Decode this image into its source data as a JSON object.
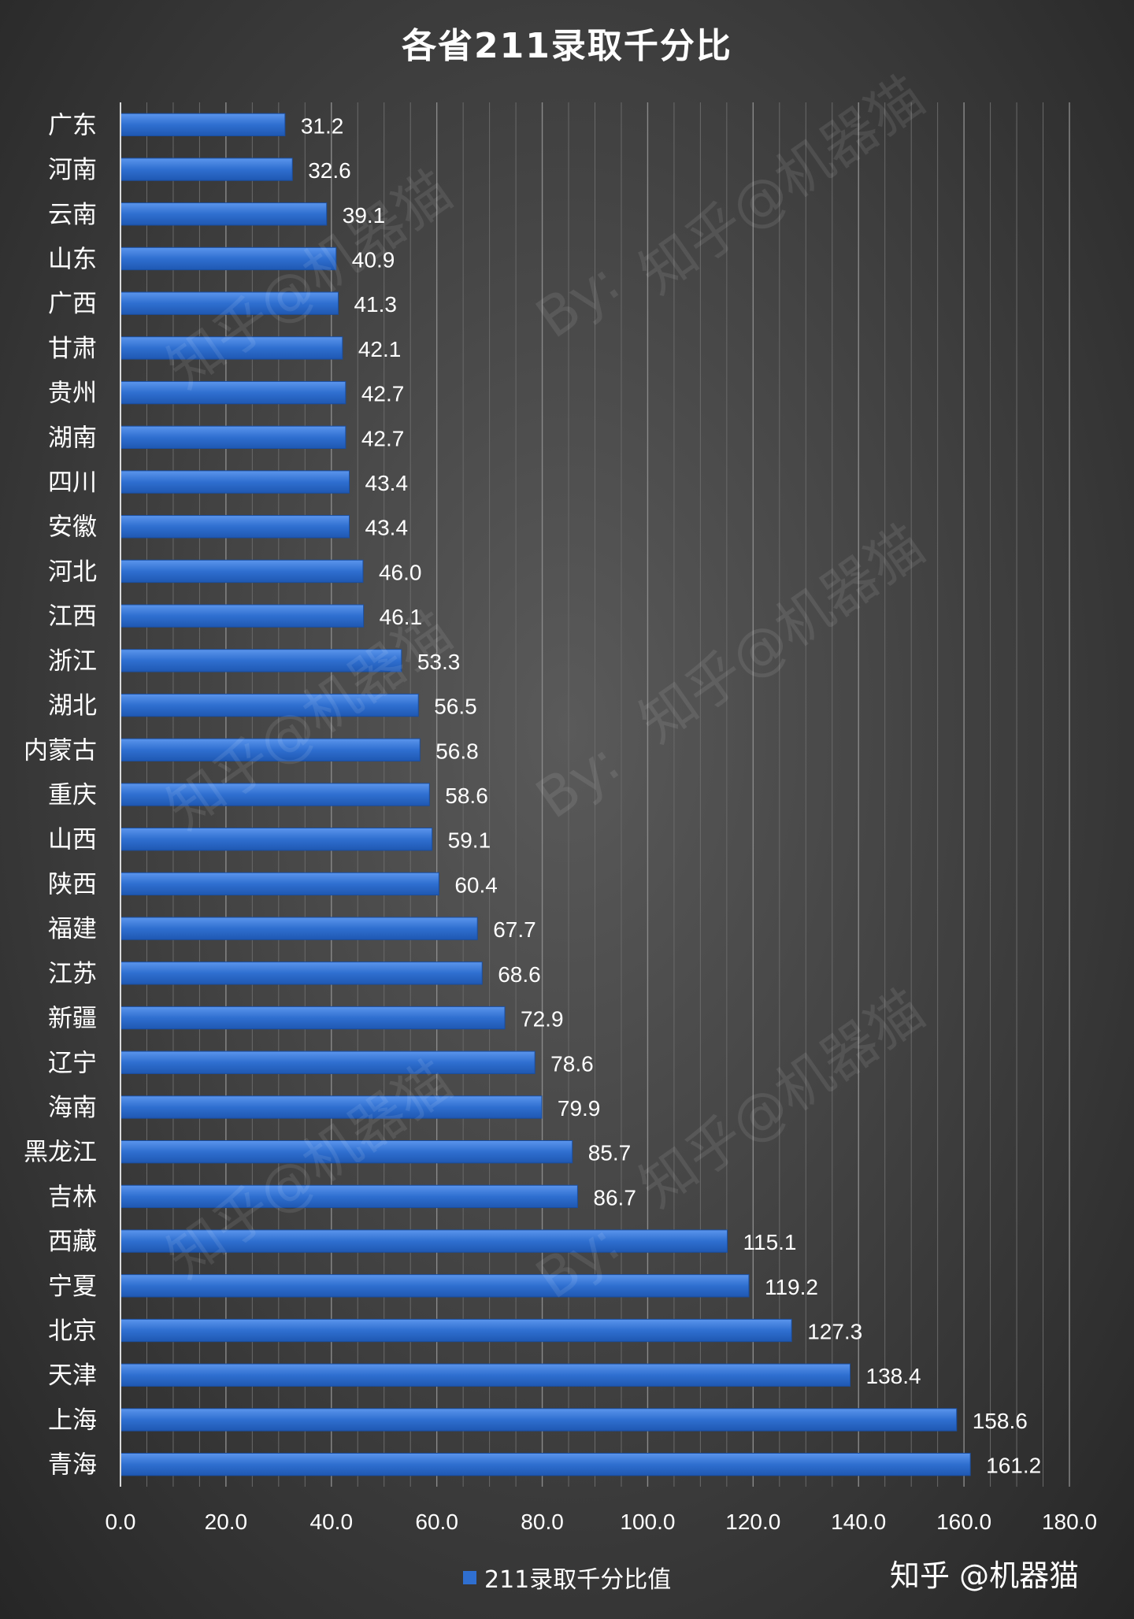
{
  "chart_data": {
    "type": "bar",
    "orientation": "horizontal",
    "title": "各省211录取千分比",
    "categories": [
      "广东",
      "河南",
      "云南",
      "山东",
      "广西",
      "甘肃",
      "贵州",
      "湖南",
      "四川",
      "安徽",
      "河北",
      "江西",
      "浙江",
      "湖北",
      "内蒙古",
      "重庆",
      "山西",
      "陕西",
      "福建",
      "江苏",
      "新疆",
      "辽宁",
      "海南",
      "黑龙江",
      "吉林",
      "西藏",
      "宁夏",
      "北京",
      "天津",
      "上海",
      "青海"
    ],
    "series": [
      {
        "name": "211录取千分比值",
        "values": [
          31.2,
          32.6,
          39.1,
          40.9,
          41.3,
          42.1,
          42.7,
          42.7,
          43.4,
          43.4,
          46.0,
          46.1,
          53.3,
          56.5,
          56.8,
          58.6,
          59.1,
          60.4,
          67.7,
          68.6,
          72.9,
          78.6,
          79.9,
          85.7,
          86.7,
          115.1,
          119.2,
          127.3,
          138.4,
          158.6,
          161.2
        ]
      }
    ],
    "value_labels": [
      "31.2",
      "32.6",
      "39.1",
      "40.9",
      "41.3",
      "42.1",
      "42.7",
      "42.7",
      "43.4",
      "43.4",
      "46.0",
      "46.1",
      "53.3",
      "56.5",
      "56.8",
      "58.6",
      "59.1",
      "60.4",
      "67.7",
      "68.6",
      "72.9",
      "78.6",
      "79.9",
      "85.7",
      "86.7",
      "115.1",
      "119.2",
      "127.3",
      "138.4",
      "158.6",
      "161.2"
    ],
    "x_ticks": [
      "0.0",
      "20.0",
      "40.0",
      "60.0",
      "80.0",
      "100.0",
      "120.0",
      "140.0",
      "160.0",
      "180.0"
    ],
    "xlim": [
      0,
      180
    ],
    "grid": true,
    "legend": "bottom-center",
    "colors": {
      "bar": "#2f6fd0",
      "bar_light": "#5b95ec",
      "grid": "#7a7a7a"
    }
  },
  "legend_label": "211录取千分比值",
  "credit": "知乎 @机器猫",
  "watermark": [
    "知乎@机器猫",
    "By:"
  ]
}
